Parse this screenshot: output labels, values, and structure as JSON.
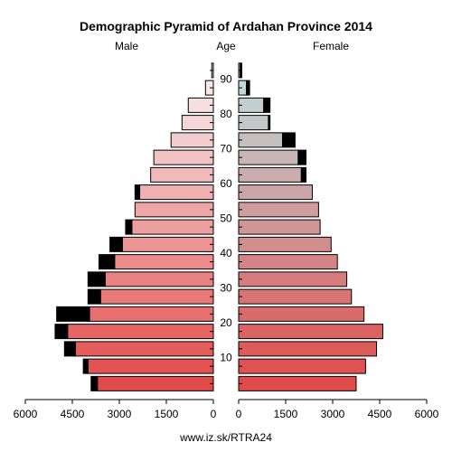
{
  "chart_data": {
    "type": "bar",
    "title": "Demographic Pyramid of Ardahan Province 2014",
    "left_label": "Male",
    "center_label": "Age",
    "right_label": "Female",
    "source": "www.iz.sk/RTRA24",
    "age_ticks": [
      "10",
      "20",
      "30",
      "40",
      "50",
      "60",
      "70",
      "80",
      "90"
    ],
    "male_ticks": [
      "6000",
      "4500",
      "3000",
      "1500",
      "0"
    ],
    "female_ticks": [
      "0",
      "1500",
      "3000",
      "4500",
      "6000"
    ],
    "xlim": [
      0,
      6000
    ],
    "legend": "none",
    "grid": false,
    "age_groups": [
      "0-4",
      "5-9",
      "10-14",
      "15-19",
      "20-24",
      "25-29",
      "30-34",
      "35-39",
      "40-44",
      "45-49",
      "50-54",
      "55-59",
      "60-64",
      "65-69",
      "70-74",
      "75-79",
      "80-84",
      "85-89",
      "90+"
    ],
    "series": [
      {
        "name": "Male",
        "values": [
          3700,
          4000,
          4400,
          4650,
          3950,
          3600,
          3450,
          3150,
          2900,
          2600,
          2500,
          2350,
          2000,
          1900,
          1350,
          1000,
          800,
          250,
          50
        ],
        "surplus": [
          200,
          150,
          350,
          400,
          1050,
          400,
          550,
          500,
          400,
          200,
          0,
          150,
          0,
          0,
          0,
          0,
          0,
          0,
          0
        ]
      },
      {
        "name": "Female",
        "values": [
          3750,
          4050,
          4400,
          4600,
          4000,
          3600,
          3450,
          3150,
          2950,
          2600,
          2550,
          2350,
          2000,
          1900,
          1400,
          950,
          800,
          250,
          50
        ],
        "surplus": [
          0,
          0,
          0,
          0,
          0,
          0,
          0,
          0,
          0,
          0,
          0,
          0,
          150,
          250,
          400,
          50,
          200,
          100,
          50
        ]
      }
    ]
  }
}
